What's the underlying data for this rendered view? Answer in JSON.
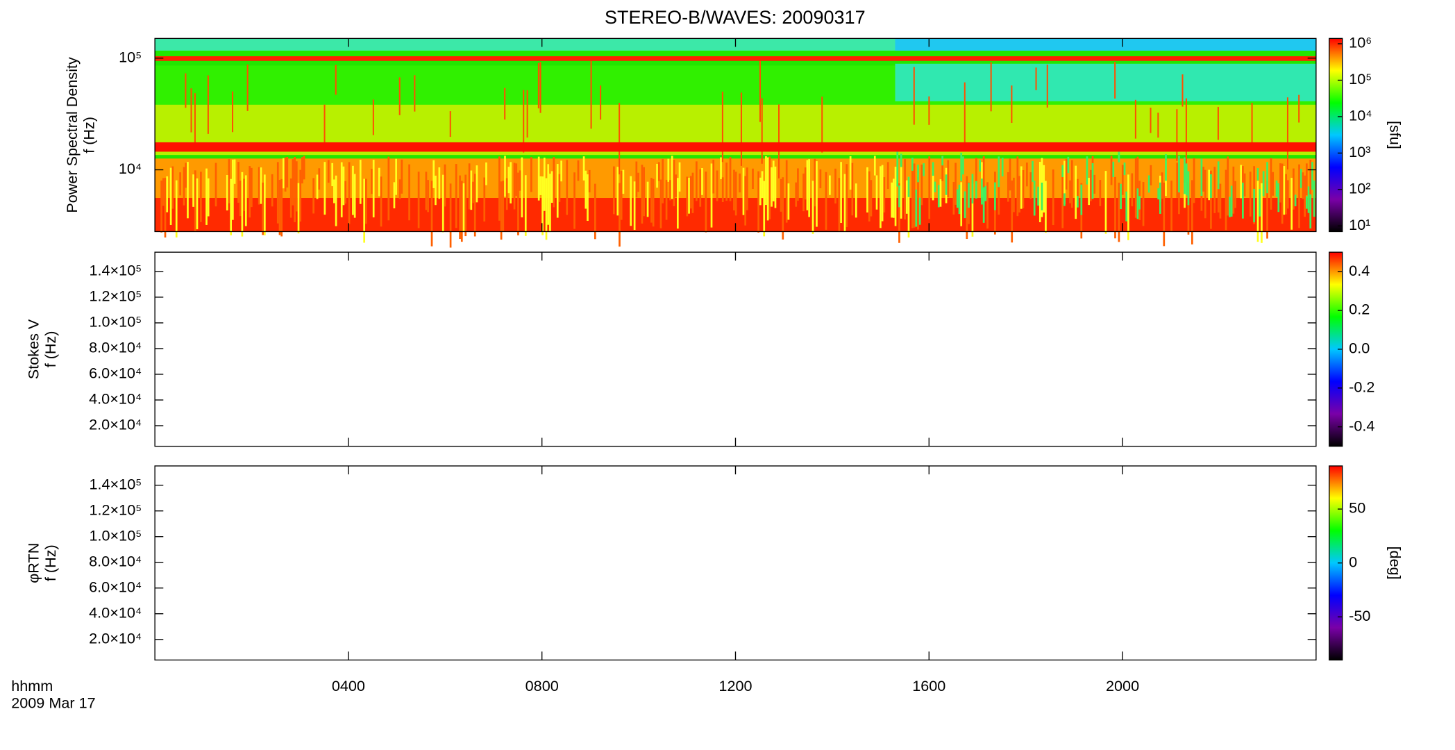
{
  "chart_data": [
    {
      "type": "heatmap",
      "title": "STEREO-B/WAVES: 20090317",
      "ylabel": [
        "Power Spectral Density",
        "f (Hz)"
      ],
      "ylog": true,
      "ylim": [
        2800,
        150000
      ],
      "yticks": [
        {
          "value": 10000,
          "label": "10⁴"
        },
        {
          "value": 100000,
          "label": "10⁵"
        }
      ],
      "colorbar": {
        "log": true,
        "lim": [
          7,
          1400000
        ],
        "label": "[sfu]",
        "ticks": [
          {
            "value": 10,
            "label": "10¹"
          },
          {
            "value": 100,
            "label": "10²"
          },
          {
            "value": 1000,
            "label": "10³"
          },
          {
            "value": 10000,
            "label": "10⁴"
          },
          {
            "value": 100000,
            "label": "10⁵"
          },
          {
            "value": 1000000,
            "label": "10⁶"
          }
        ],
        "colormap": [
          "#000000",
          "#7a00a8",
          "#0000ff",
          "#00c8ff",
          "#00ff00",
          "#ffff00",
          "#ff0000"
        ]
      }
    },
    {
      "type": "heatmap",
      "ylabel": [
        "Stokes V",
        "f (Hz)"
      ],
      "ylim": [
        4000,
        155000
      ],
      "yticks": [
        {
          "value": 20000,
          "label": "2.0×10⁴"
        },
        {
          "value": 40000,
          "label": "4.0×10⁴"
        },
        {
          "value": 60000,
          "label": "6.0×10⁴"
        },
        {
          "value": 80000,
          "label": "8.0×10⁴"
        },
        {
          "value": 100000,
          "label": "1.0×10⁵"
        },
        {
          "value": 120000,
          "label": "1.2×10⁵"
        },
        {
          "value": 140000,
          "label": "1.4×10⁵"
        }
      ],
      "colorbar": {
        "lim": [
          -0.5,
          0.5
        ],
        "ticks": [
          -0.4,
          -0.2,
          {
            "value": 0,
            "label": "0.0"
          },
          0.2,
          0.4
        ],
        "colormap": [
          "#000000",
          "#7a00a8",
          "#0000ff",
          "#00c8ff",
          "#00ff00",
          "#ffff00",
          "#ff0000"
        ]
      }
    },
    {
      "type": "heatmap",
      "ylabel": [
        "φRTN",
        "f (Hz)"
      ],
      "ylim": [
        4000,
        155000
      ],
      "yticks": [
        {
          "value": 20000,
          "label": "2.0×10⁴"
        },
        {
          "value": 40000,
          "label": "4.0×10⁴"
        },
        {
          "value": 60000,
          "label": "6.0×10⁴"
        },
        {
          "value": 80000,
          "label": "8.0×10⁴"
        },
        {
          "value": 100000,
          "label": "1.0×10⁵"
        },
        {
          "value": 120000,
          "label": "1.2×10⁵"
        },
        {
          "value": 140000,
          "label": "1.4×10⁵"
        }
      ],
      "colorbar": {
        "lim": [
          -90,
          90
        ],
        "label": "[deg]",
        "ticks": [
          -50,
          0,
          50
        ],
        "colormap": [
          "#000000",
          "#7a00a8",
          "#0000ff",
          "#00c8ff",
          "#00ff00",
          "#ffff00",
          "#ff0000"
        ]
      },
      "xlim": [
        0,
        24
      ],
      "xticks": [
        {
          "value": 4,
          "label": "0400"
        },
        {
          "value": 8,
          "label": "0800"
        },
        {
          "value": 12,
          "label": "1200"
        },
        {
          "value": 16,
          "label": "1600"
        },
        {
          "value": 20,
          "label": "2000"
        }
      ],
      "xlabel": [
        "hhmm",
        "2009 Mar 17"
      ]
    }
  ]
}
